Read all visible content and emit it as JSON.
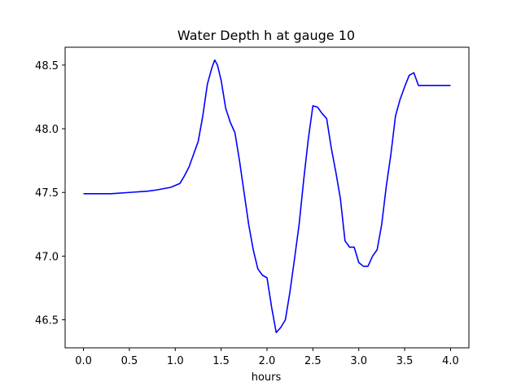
{
  "chart_data": {
    "type": "line",
    "title": "Water Depth h at gauge 10",
    "xlabel": "hours",
    "ylabel": "",
    "xlim": [
      -0.2,
      4.2
    ],
    "ylim": [
      46.28,
      48.64
    ],
    "xticks": [
      0.0,
      0.5,
      1.0,
      1.5,
      2.0,
      2.5,
      3.0,
      3.5,
      4.0
    ],
    "xtick_labels": [
      "0.0",
      "0.5",
      "1.0",
      "1.5",
      "2.0",
      "2.5",
      "3.0",
      "3.5",
      "4.0"
    ],
    "yticks": [
      46.5,
      47.0,
      47.5,
      48.0,
      48.5
    ],
    "ytick_labels": [
      "46.5",
      "47.0",
      "47.5",
      "48.0",
      "48.5"
    ],
    "grid": false,
    "series": [
      {
        "name": "",
        "color": "#0000ff",
        "x": [
          0.0,
          0.3,
          0.5,
          0.7,
          0.8,
          0.95,
          1.05,
          1.1,
          1.15,
          1.2,
          1.25,
          1.3,
          1.35,
          1.4,
          1.43,
          1.46,
          1.5,
          1.55,
          1.6,
          1.65,
          1.7,
          1.75,
          1.8,
          1.85,
          1.9,
          1.95,
          2.0,
          2.05,
          2.1,
          2.15,
          2.2,
          2.25,
          2.3,
          2.35,
          2.4,
          2.45,
          2.5,
          2.55,
          2.6,
          2.65,
          2.7,
          2.75,
          2.8,
          2.85,
          2.9,
          2.95,
          3.0,
          3.05,
          3.1,
          3.15,
          3.2,
          3.25,
          3.3,
          3.35,
          3.4,
          3.45,
          3.5,
          3.55,
          3.6,
          3.65,
          3.7,
          3.75,
          3.8,
          3.85,
          3.9,
          3.95,
          4.0
        ],
        "y": [
          47.49,
          47.49,
          47.5,
          47.51,
          47.52,
          47.54,
          47.57,
          47.63,
          47.7,
          47.8,
          47.9,
          48.1,
          48.35,
          48.48,
          48.54,
          48.5,
          48.38,
          48.16,
          48.05,
          47.97,
          47.75,
          47.5,
          47.25,
          47.05,
          46.9,
          46.85,
          46.83,
          46.6,
          46.4,
          46.44,
          46.5,
          46.72,
          46.98,
          47.25,
          47.6,
          47.92,
          48.18,
          48.17,
          48.12,
          48.08,
          47.85,
          47.66,
          47.45,
          47.12,
          47.07,
          47.07,
          46.95,
          46.92,
          46.92,
          47.0,
          47.05,
          47.25,
          47.55,
          47.8,
          48.1,
          48.23,
          48.33,
          48.42,
          48.44,
          48.34,
          48.34,
          48.34,
          48.34,
          48.34,
          48.34,
          48.34,
          48.34
        ]
      }
    ]
  }
}
